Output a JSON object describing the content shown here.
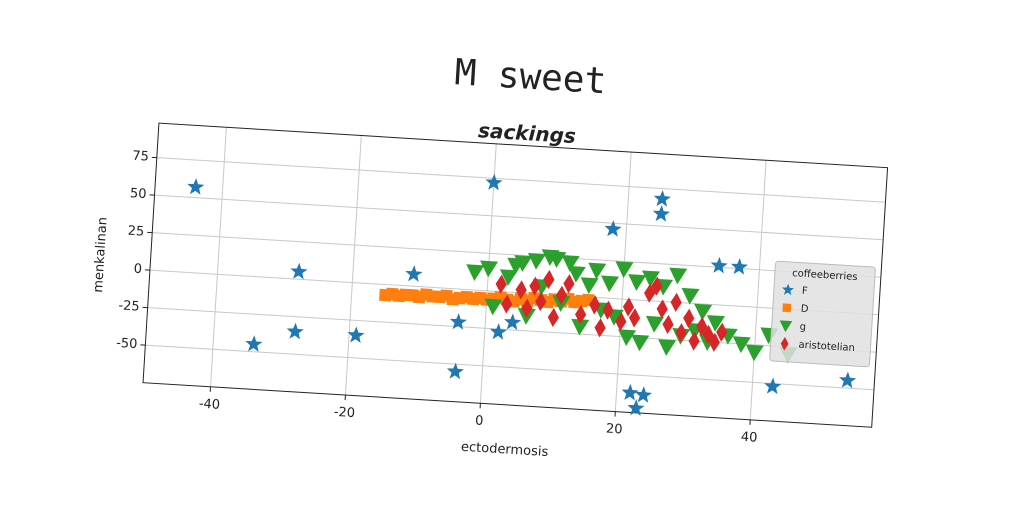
{
  "chart_data": {
    "type": "scatter",
    "title": "M sweet",
    "subtitle": "sackings",
    "x_label": "ectodermosis",
    "y_label": "menkalinan",
    "xlim": [
      -50,
      58
    ],
    "ylim": [
      -75,
      98
    ],
    "xticks": [
      -40,
      -20,
      0,
      20,
      40
    ],
    "yticks": [
      -50,
      -25,
      0,
      25,
      50,
      75
    ],
    "grid": true,
    "legend_title": "coffeeberries",
    "legend_loc": "center right",
    "series": [
      {
        "name": "F",
        "color": "#1f77b4",
        "marker": "star",
        "x": [
          -44,
          -28,
          -34,
          -28,
          -19,
          -11,
          -4,
          -4,
          0,
          2,
          4,
          18,
          25,
          25,
          34,
          37,
          22,
          24,
          23,
          43,
          54
        ],
        "values": [
          57,
          5,
          -45,
          -35,
          -35,
          8,
          -22,
          -55,
          72,
          -27,
          -20,
          46,
          68,
          58,
          26,
          26,
          -62,
          -63,
          -72,
          -52,
          -45
        ]
      },
      {
        "name": "D",
        "color": "#ff7f0e",
        "marker": "square",
        "x": [
          -15,
          -14,
          -13,
          -12,
          -11,
          -10,
          -9,
          -8,
          -7,
          -6,
          -5,
          -4,
          -3,
          -2,
          -1,
          0,
          1,
          2,
          3,
          4,
          5,
          6,
          7,
          8,
          9,
          10,
          11,
          12,
          13,
          14,
          15
        ],
        "values": [
          -7,
          -6,
          -7,
          -6,
          -6,
          -7,
          -5,
          -6,
          -6,
          -5,
          -7,
          -6,
          -5,
          -6,
          -5,
          -6,
          -5,
          -4,
          -5,
          -6,
          -4,
          -5,
          -3,
          -4,
          -5,
          -3,
          -4,
          -2,
          -4,
          -3,
          -2
        ]
      },
      {
        "name": "g",
        "color": "#2ca02c",
        "marker": "triangle-down",
        "x": [
          -2,
          0,
          1,
          3,
          4,
          5,
          6,
          7,
          8,
          9,
          10,
          11,
          12,
          13,
          14,
          15,
          16,
          17,
          18,
          19,
          20,
          21,
          22,
          23,
          24,
          25,
          26,
          27,
          28,
          29,
          30,
          31,
          32,
          33,
          34,
          36,
          38,
          40,
          42,
          45
        ],
        "values": [
          12,
          15,
          -10,
          10,
          18,
          20,
          -15,
          22,
          5,
          25,
          24,
          -5,
          22,
          15,
          -20,
          8,
          18,
          -8,
          10,
          -12,
          20,
          -25,
          12,
          -28,
          15,
          -15,
          10,
          -30,
          18,
          -22,
          5,
          -18,
          -5,
          -25,
          -12,
          -20,
          -25,
          -30,
          -18,
          -30
        ]
      },
      {
        "name": "aristotelian",
        "color": "#d62728",
        "marker": "diamond",
        "x": [
          2,
          3,
          5,
          6,
          7,
          8,
          9,
          10,
          11,
          12,
          14,
          16,
          17,
          18,
          20,
          21,
          22,
          24,
          25,
          26,
          27,
          28,
          29,
          30,
          31,
          32,
          33,
          34,
          35
        ],
        "values": [
          5,
          -8,
          2,
          -10,
          5,
          -5,
          10,
          -15,
          0,
          8,
          -12,
          -5,
          -20,
          -8,
          -15,
          -5,
          -12,
          5,
          10,
          -5,
          -15,
          0,
          -20,
          -10,
          -25,
          -15,
          -20,
          -25,
          -18
        ]
      }
    ]
  }
}
